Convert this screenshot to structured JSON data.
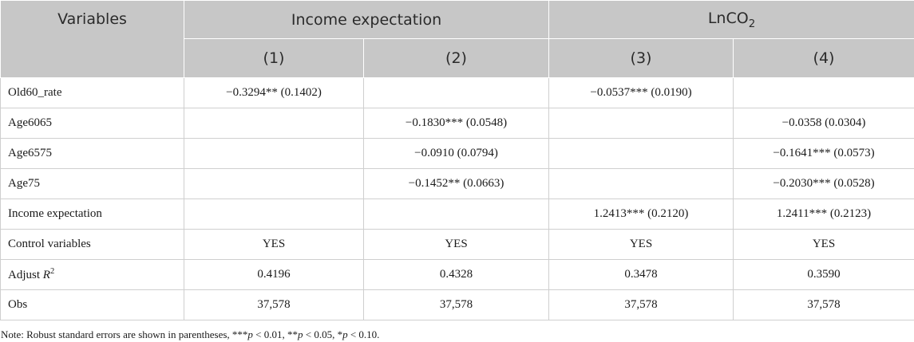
{
  "header": {
    "variables": "Variables",
    "group1": "Income expectation",
    "group2_base": "LnCO",
    "group2_sub": "2",
    "cols": [
      "(1)",
      "(2)",
      "(3)",
      "(4)"
    ]
  },
  "rows": [
    {
      "label": "Old60_rate",
      "values": [
        "−0.3294** (0.1402)",
        "",
        "−0.0537*** (0.0190)",
        ""
      ]
    },
    {
      "label": "Age6065",
      "values": [
        "",
        "−0.1830*** (0.0548)",
        "",
        "−0.0358 (0.0304)"
      ]
    },
    {
      "label": "Age6575",
      "values": [
        "",
        "−0.0910 (0.0794)",
        "",
        "−0.1641*** (0.0573)"
      ]
    },
    {
      "label": "Age75",
      "values": [
        "",
        "−0.1452** (0.0663)",
        "",
        "−0.2030*** (0.0528)"
      ]
    },
    {
      "label": "Income expectation",
      "values": [
        "",
        "",
        "1.2413*** (0.2120)",
        "1.2411*** (0.2123)"
      ]
    },
    {
      "label": "Control variables",
      "values": [
        "YES",
        "YES",
        "YES",
        "YES"
      ]
    },
    {
      "label_main": "Adjust ",
      "label_ital": "R",
      "label_sup": "2",
      "values": [
        "0.4196",
        "0.4328",
        "0.3478",
        "0.3590"
      ]
    },
    {
      "label": "Obs",
      "values": [
        "37,578",
        "37,578",
        "37,578",
        "37,578"
      ]
    }
  ],
  "note": {
    "t1": "Note: Robust standard errors are shown in parentheses, ***",
    "p1": "p",
    "t2": " < 0.01, **",
    "p2": "p",
    "t3": " < 0.05, *",
    "p3": "p",
    "t4": " < 0.10."
  }
}
